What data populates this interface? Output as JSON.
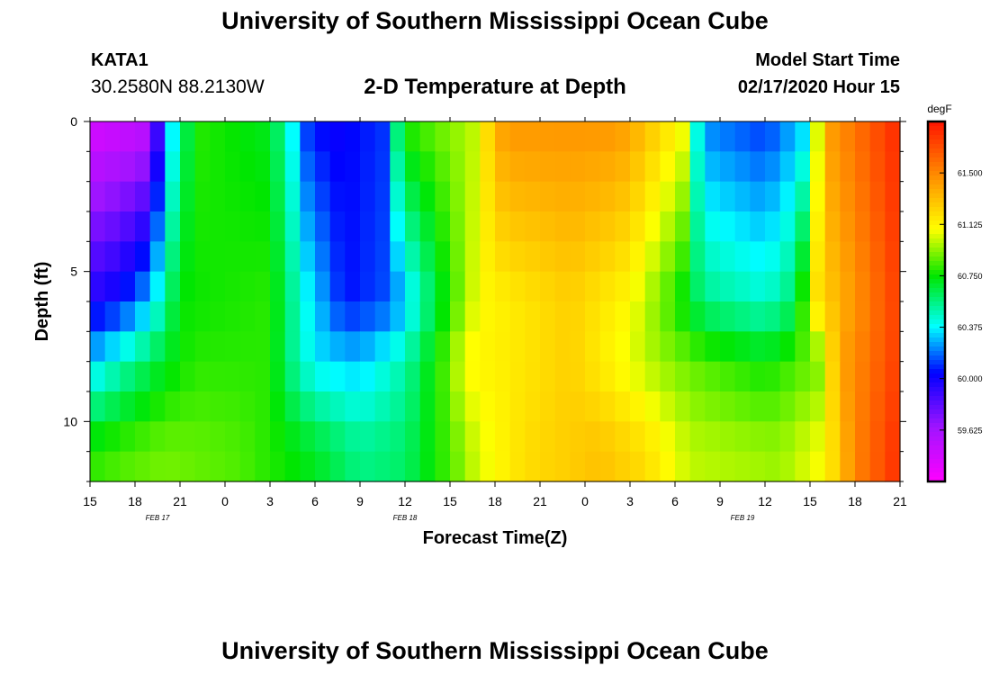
{
  "header": {
    "title": "University of Southern Mississippi Ocean Cube",
    "station": "KATA1",
    "coords": "30.2580N 88.2130W",
    "subtitle": "2-D Temperature at Depth",
    "model_start_label": "Model Start Time",
    "model_start_value": "02/17/2020 Hour 15"
  },
  "footer": {
    "title": "University of Southern Mississippi Ocean Cube"
  },
  "chart_data": {
    "type": "heatmap",
    "xlabel": "Forecast Time(Z)",
    "ylabel": "Depth (ft)",
    "x_ticks": [
      "15",
      "18",
      "21",
      "0",
      "3",
      "6",
      "9",
      "12",
      "15",
      "18",
      "21",
      "0",
      "3",
      "6",
      "9",
      "12",
      "15",
      "18",
      "21"
    ],
    "x_range_hours": [
      0,
      54
    ],
    "date_labels": [
      {
        "text": "FEB 17",
        "hour": 4.5
      },
      {
        "text": "FEB 18",
        "hour": 21
      },
      {
        "text": "FEB 19",
        "hour": 43.5
      }
    ],
    "y_ticks": [
      0,
      5,
      10
    ],
    "ylim": [
      0,
      12
    ],
    "y_inverted": true,
    "colorbar": {
      "unit": "degF",
      "ticks": [
        59.625,
        60.0,
        60.375,
        60.75,
        61.125,
        61.5
      ],
      "tick_labels": [
        "59.625",
        "60.000",
        "60.375",
        "60.750",
        "61.125",
        "61.500"
      ],
      "min": 59.25,
      "max": 61.875
    },
    "grid": {
      "rows": 12,
      "time_step_hours": 1,
      "temperature_anchors_by_depth_band": [
        {
          "depth": 0,
          "times": [
            0,
            4,
            5,
            7,
            12,
            13,
            14.5,
            16,
            19.5,
            20,
            21,
            25.6,
            27.3,
            28,
            32,
            35,
            36,
            39.5,
            40,
            40.5,
            41.5,
            45,
            47.5,
            49,
            54
          ],
          "temps": [
            59.4,
            59.5,
            60.2,
            60.8,
            60.7,
            60.5,
            60.1,
            60.0,
            60.1,
            60.4,
            60.8,
            61.0,
            61.4,
            61.45,
            61.45,
            61.45,
            61.4,
            61.1,
            60.75,
            60.4,
            60.2,
            60.1,
            60.3,
            61.4,
            61.82
          ]
        },
        {
          "depth": 6,
          "times": [
            0,
            2,
            4,
            6,
            12,
            14,
            17,
            20,
            24,
            26,
            32,
            36,
            39,
            41,
            45,
            47,
            48.5,
            54
          ],
          "temps": [
            59.95,
            60.05,
            60.3,
            60.75,
            60.8,
            60.45,
            60.05,
            60.15,
            60.8,
            61.1,
            61.25,
            61.1,
            60.8,
            60.55,
            60.45,
            60.6,
            61.2,
            61.75
          ]
        },
        {
          "depth": 8,
          "times": [
            0,
            3,
            5,
            7,
            12,
            13,
            15,
            18,
            21,
            24,
            25,
            28,
            32,
            36,
            38,
            41,
            45,
            48.5,
            50,
            54
          ],
          "temps": [
            60.3,
            60.55,
            60.7,
            60.8,
            60.8,
            60.6,
            60.35,
            60.3,
            60.5,
            60.9,
            61.1,
            61.15,
            61.25,
            61.05,
            60.95,
            60.85,
            60.75,
            60.9,
            61.4,
            61.75
          ]
        },
        {
          "depth": 11,
          "times": [
            0,
            2,
            5,
            10,
            15,
            18,
            21,
            24,
            26,
            29,
            34,
            37,
            40,
            46,
            49,
            51,
            54
          ],
          "temps": [
            60.8,
            60.85,
            60.9,
            60.85,
            60.7,
            60.55,
            60.6,
            60.85,
            61.05,
            61.2,
            61.3,
            61.2,
            61.0,
            60.95,
            61.1,
            61.5,
            61.8
          ]
        }
      ]
    }
  }
}
